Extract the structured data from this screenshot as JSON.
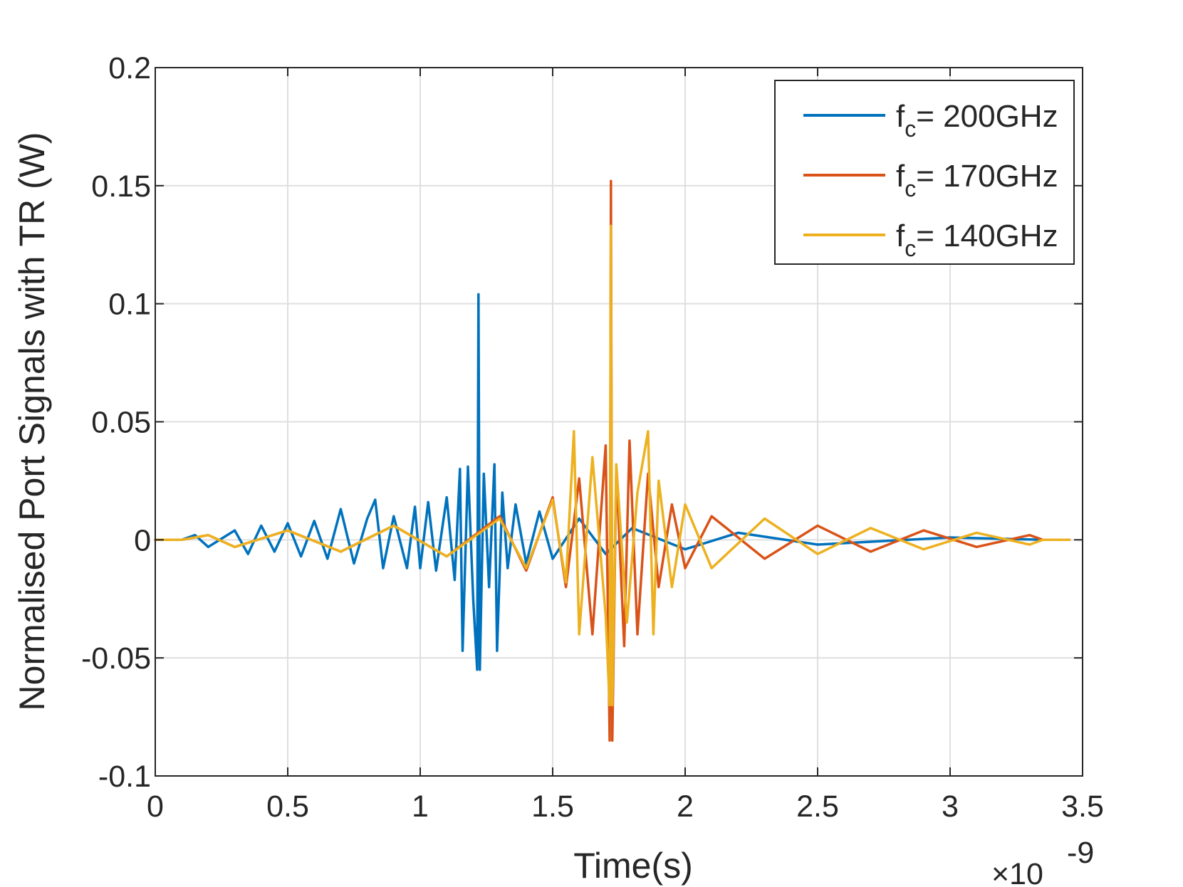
{
  "chart_data": {
    "type": "line",
    "xlabel": "Time(s)",
    "ylabel": "Normalised Port Signals with TR (W)",
    "x_multiplier_base": "×10",
    "x_multiplier_exp": "-9",
    "x_scale": 1e-09,
    "xlim": [
      0,
      3.5
    ],
    "ylim": [
      -0.1,
      0.2
    ],
    "xticks": [
      0,
      0.5,
      1,
      1.5,
      2,
      2.5,
      3,
      3.5
    ],
    "xtick_labels": [
      "0",
      "0.5",
      "1",
      "1.5",
      "2",
      "2.5",
      "3",
      "3.5"
    ],
    "yticks": [
      -0.1,
      -0.05,
      0,
      0.05,
      0.1,
      0.15,
      0.2
    ],
    "ytick_labels": [
      "-0.1",
      "-0.05",
      "0",
      "0.05",
      "0.1",
      "0.15",
      "0.2"
    ],
    "grid": true,
    "legend_position": "top-right",
    "series": [
      {
        "legend_main": "f",
        "legend_sub": "c",
        "legend_rest": "= 200GHz",
        "color": "#0072BD",
        "points": [
          [
            0,
            0
          ],
          [
            0.1,
            0
          ],
          [
            0.15,
            0.002
          ],
          [
            0.2,
            -0.003
          ],
          [
            0.3,
            0.004
          ],
          [
            0.35,
            -0.006
          ],
          [
            0.4,
            0.006
          ],
          [
            0.45,
            -0.005
          ],
          [
            0.5,
            0.007
          ],
          [
            0.55,
            -0.007
          ],
          [
            0.6,
            0.008
          ],
          [
            0.65,
            -0.008
          ],
          [
            0.7,
            0.013
          ],
          [
            0.75,
            -0.01
          ],
          [
            0.8,
            0.009
          ],
          [
            0.83,
            0.017
          ],
          [
            0.86,
            -0.012
          ],
          [
            0.9,
            0.01
          ],
          [
            0.95,
            -0.012
          ],
          [
            0.98,
            0.014
          ],
          [
            1.0,
            -0.012
          ],
          [
            1.03,
            0.016
          ],
          [
            1.06,
            -0.013
          ],
          [
            1.1,
            0.018
          ],
          [
            1.13,
            -0.017
          ],
          [
            1.15,
            0.03
          ],
          [
            1.16,
            -0.047
          ],
          [
            1.18,
            0.031
          ],
          [
            1.2,
            -0.025
          ],
          [
            1.215,
            -0.055
          ],
          [
            1.22,
            0.104
          ],
          [
            1.225,
            -0.055
          ],
          [
            1.24,
            0.028
          ],
          [
            1.26,
            -0.02
          ],
          [
            1.28,
            0.032
          ],
          [
            1.29,
            -0.047
          ],
          [
            1.31,
            0.02
          ],
          [
            1.33,
            -0.012
          ],
          [
            1.36,
            0.015
          ],
          [
            1.4,
            -0.01
          ],
          [
            1.45,
            0.012
          ],
          [
            1.5,
            -0.008
          ],
          [
            1.6,
            0.009
          ],
          [
            1.7,
            -0.006
          ],
          [
            1.8,
            0.005
          ],
          [
            2.0,
            -0.004
          ],
          [
            2.2,
            0.003
          ],
          [
            2.5,
            -0.002
          ],
          [
            3.0,
            0.001
          ],
          [
            3.35,
            0
          ],
          [
            3.45,
            0
          ]
        ]
      },
      {
        "legend_main": "f",
        "legend_sub": "c",
        "legend_rest": "= 170GHz",
        "color": "#D95319",
        "points": [
          [
            0,
            0
          ],
          [
            0.1,
            0
          ],
          [
            0.2,
            0.002
          ],
          [
            0.3,
            -0.003
          ],
          [
            0.5,
            0.004
          ],
          [
            0.7,
            -0.005
          ],
          [
            0.9,
            0.006
          ],
          [
            1.1,
            -0.007
          ],
          [
            1.3,
            0.01
          ],
          [
            1.4,
            -0.013
          ],
          [
            1.5,
            0.018
          ],
          [
            1.55,
            -0.02
          ],
          [
            1.6,
            0.026
          ],
          [
            1.65,
            -0.04
          ],
          [
            1.7,
            0.04
          ],
          [
            1.715,
            -0.085
          ],
          [
            1.72,
            0.152
          ],
          [
            1.725,
            -0.085
          ],
          [
            1.74,
            0.03
          ],
          [
            1.77,
            -0.045
          ],
          [
            1.79,
            0.042
          ],
          [
            1.82,
            -0.04
          ],
          [
            1.86,
            0.028
          ],
          [
            1.9,
            -0.02
          ],
          [
            1.95,
            0.015
          ],
          [
            2.0,
            -0.012
          ],
          [
            2.1,
            0.01
          ],
          [
            2.3,
            -0.008
          ],
          [
            2.5,
            0.006
          ],
          [
            2.7,
            -0.005
          ],
          [
            2.9,
            0.004
          ],
          [
            3.1,
            -0.003
          ],
          [
            3.3,
            0.002
          ],
          [
            3.35,
            0
          ],
          [
            3.45,
            0
          ]
        ]
      },
      {
        "legend_main": "f",
        "legend_sub": "c",
        "legend_rest": "= 140GHz",
        "color": "#EDB120",
        "points": [
          [
            0,
            0
          ],
          [
            0.1,
            0
          ],
          [
            0.2,
            0.002
          ],
          [
            0.3,
            -0.003
          ],
          [
            0.5,
            0.004
          ],
          [
            0.7,
            -0.005
          ],
          [
            0.9,
            0.006
          ],
          [
            1.1,
            -0.007
          ],
          [
            1.3,
            0.009
          ],
          [
            1.4,
            -0.012
          ],
          [
            1.5,
            0.017
          ],
          [
            1.55,
            -0.018
          ],
          [
            1.58,
            0.046
          ],
          [
            1.6,
            -0.04
          ],
          [
            1.65,
            0.035
          ],
          [
            1.7,
            -0.032
          ],
          [
            1.715,
            -0.07
          ],
          [
            1.72,
            0.133
          ],
          [
            1.725,
            -0.07
          ],
          [
            1.74,
            0.032
          ],
          [
            1.78,
            -0.035
          ],
          [
            1.82,
            0.02
          ],
          [
            1.86,
            0.046
          ],
          [
            1.88,
            -0.04
          ],
          [
            1.9,
            0.025
          ],
          [
            1.95,
            -0.02
          ],
          [
            2.0,
            0.015
          ],
          [
            2.1,
            -0.012
          ],
          [
            2.3,
            0.009
          ],
          [
            2.5,
            -0.006
          ],
          [
            2.7,
            0.005
          ],
          [
            2.9,
            -0.004
          ],
          [
            3.1,
            0.003
          ],
          [
            3.3,
            -0.002
          ],
          [
            3.35,
            0
          ],
          [
            3.45,
            0
          ]
        ]
      }
    ]
  }
}
